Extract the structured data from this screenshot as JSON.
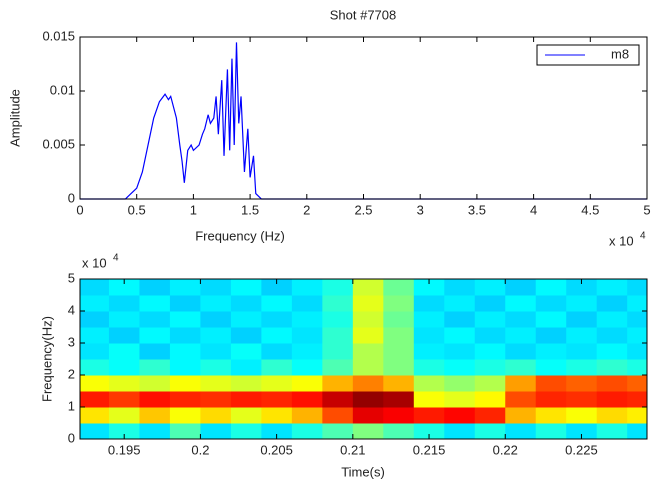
{
  "chart_data": [
    {
      "type": "line",
      "title": "Shot #7708",
      "xlabel": "Frequency (Hz)",
      "ylabel": "Amplitude",
      "x_exponent_base": "x 10",
      "x_exponent": "4",
      "xlim": [
        0,
        5
      ],
      "xticks": [
        0,
        0.5,
        1,
        1.5,
        2,
        2.5,
        3,
        3.5,
        4,
        4.5,
        5
      ],
      "ylim": [
        0,
        0.015
      ],
      "yticks": [
        0,
        0.005,
        0.01,
        0.015
      ],
      "legend": "top-right",
      "grid": false,
      "x": [
        0,
        0.4,
        0.45,
        0.5,
        0.55,
        0.6,
        0.65,
        0.7,
        0.75,
        0.78,
        0.8,
        0.85,
        0.88,
        0.9,
        0.92,
        0.95,
        0.98,
        1.0,
        1.05,
        1.08,
        1.1,
        1.13,
        1.15,
        1.18,
        1.2,
        1.22,
        1.25,
        1.27,
        1.3,
        1.32,
        1.34,
        1.36,
        1.38,
        1.4,
        1.42,
        1.45,
        1.48,
        1.5,
        1.53,
        1.55,
        1.6,
        5
      ],
      "series": [
        {
          "name": "m8",
          "color": "#0000ff",
          "values": [
            0,
            0,
            0.0005,
            0.001,
            0.0025,
            0.005,
            0.0075,
            0.009,
            0.0097,
            0.0092,
            0.0095,
            0.0075,
            0.005,
            0.0035,
            0.0015,
            0.0045,
            0.005,
            0.0045,
            0.005,
            0.006,
            0.0065,
            0.0078,
            0.007,
            0.0075,
            0.0095,
            0.006,
            0.011,
            0.004,
            0.012,
            0.0045,
            0.013,
            0.005,
            0.0145,
            0.007,
            0.0095,
            0.0025,
            0.0065,
            0.002,
            0.004,
            0.0005,
            0,
            0
          ]
        }
      ]
    },
    {
      "type": "heatmap",
      "xlabel": "Time(s)",
      "ylabel": "Frequency(Hz)",
      "y_exponent_base": "x 10",
      "y_exponent": "4",
      "xlim": [
        0.1921,
        0.2293
      ],
      "xticks": [
        0.195,
        0.2,
        0.205,
        0.21,
        0.215,
        0.22,
        0.225
      ],
      "ylim": [
        0,
        5
      ],
      "yticks": [
        0,
        1,
        2,
        3,
        4,
        5
      ],
      "colormap": "jet",
      "x_edges": [
        0.1921,
        0.194,
        0.196,
        0.198,
        0.2,
        0.202,
        0.204,
        0.206,
        0.208,
        0.21,
        0.212,
        0.214,
        0.216,
        0.218,
        0.22,
        0.222,
        0.224,
        0.226,
        0.228,
        0.2293
      ],
      "y_edges": [
        0,
        0.5,
        1,
        1.5,
        2,
        2.5,
        3,
        3.5,
        4,
        4.5,
        5
      ],
      "z": [
        [
          0.35,
          0.4,
          0.35,
          0.45,
          0.35,
          0.4,
          0.35,
          0.4,
          0.45,
          0.5,
          0.45,
          0.4,
          0.35,
          0.4,
          0.35,
          0.4,
          0.35,
          0.4,
          0.35
        ],
        [
          0.65,
          0.6,
          0.68,
          0.62,
          0.66,
          0.6,
          0.65,
          0.7,
          0.8,
          0.9,
          0.88,
          0.85,
          0.87,
          0.84,
          0.7,
          0.65,
          0.62,
          0.66,
          0.64
        ],
        [
          0.85,
          0.82,
          0.86,
          0.84,
          0.83,
          0.85,
          0.84,
          0.86,
          0.93,
          0.98,
          0.96,
          0.62,
          0.6,
          0.63,
          0.8,
          0.84,
          0.83,
          0.85,
          0.84
        ],
        [
          0.62,
          0.6,
          0.58,
          0.62,
          0.6,
          0.58,
          0.6,
          0.62,
          0.7,
          0.75,
          0.7,
          0.55,
          0.52,
          0.55,
          0.72,
          0.8,
          0.78,
          0.8,
          0.78
        ],
        [
          0.4,
          0.38,
          0.42,
          0.37,
          0.4,
          0.36,
          0.42,
          0.38,
          0.45,
          0.55,
          0.5,
          0.4,
          0.38,
          0.4,
          0.42,
          0.38,
          0.4,
          0.42,
          0.4
        ],
        [
          0.35,
          0.38,
          0.33,
          0.37,
          0.35,
          0.38,
          0.34,
          0.36,
          0.42,
          0.55,
          0.5,
          0.36,
          0.35,
          0.37,
          0.34,
          0.36,
          0.35,
          0.37,
          0.35
        ],
        [
          0.36,
          0.33,
          0.37,
          0.34,
          0.36,
          0.33,
          0.37,
          0.35,
          0.42,
          0.6,
          0.5,
          0.35,
          0.37,
          0.34,
          0.36,
          0.33,
          0.36,
          0.34,
          0.36
        ],
        [
          0.33,
          0.36,
          0.34,
          0.37,
          0.33,
          0.36,
          0.34,
          0.36,
          0.4,
          0.58,
          0.48,
          0.36,
          0.33,
          0.36,
          0.34,
          0.37,
          0.33,
          0.36,
          0.34
        ],
        [
          0.36,
          0.34,
          0.37,
          0.33,
          0.36,
          0.34,
          0.37,
          0.34,
          0.42,
          0.6,
          0.5,
          0.34,
          0.36,
          0.33,
          0.37,
          0.34,
          0.36,
          0.33,
          0.36
        ],
        [
          0.34,
          0.37,
          0.33,
          0.36,
          0.34,
          0.37,
          0.33,
          0.36,
          0.4,
          0.58,
          0.48,
          0.37,
          0.34,
          0.36,
          0.33,
          0.37,
          0.34,
          0.36,
          0.34
        ]
      ]
    }
  ]
}
